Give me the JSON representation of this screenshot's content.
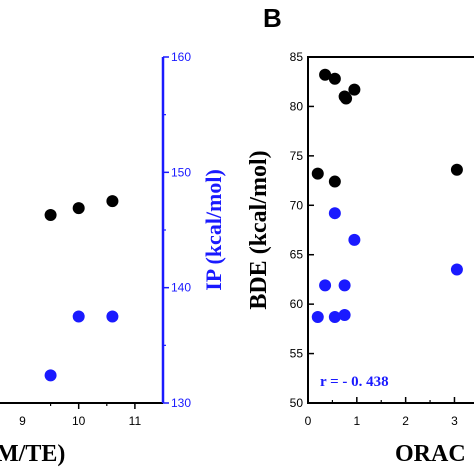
{
  "colors": {
    "black": "#000000",
    "blue": "#1a1aff"
  },
  "chart_data": [
    {
      "panel": "A",
      "type": "scatter",
      "xlabel": "M/TE)",
      "y2label": "IP (kcal/mol)",
      "xlim": [
        8.6,
        11.5
      ],
      "y2lim": [
        130,
        160
      ],
      "x_ticks": [
        10,
        11
      ],
      "y2_ticks": [
        130,
        140,
        150,
        160
      ],
      "series": [
        {
          "color": "black",
          "points": [
            [
              9.5,
              146.3
            ],
            [
              10.0,
              146.9
            ],
            [
              10.6,
              147.5
            ]
          ]
        },
        {
          "color": "blue",
          "points": [
            [
              9.5,
              132.4
            ],
            [
              10.0,
              137.5
            ],
            [
              10.6,
              137.5
            ]
          ]
        }
      ]
    },
    {
      "panel": "B",
      "type": "scatter",
      "title": "B",
      "xlabel": "ORAC",
      "ylabel": "BDE (kcal/mol)",
      "annotation": "r = - 0. 438",
      "xlim": [
        0,
        3.4
      ],
      "ylim": [
        50,
        85
      ],
      "x_ticks": [
        0,
        1,
        2,
        3
      ],
      "y_ticks": [
        50,
        55,
        60,
        65,
        70,
        75,
        80,
        85
      ],
      "series": [
        {
          "color": "black",
          "points": [
            [
              0.35,
              83.2
            ],
            [
              0.55,
              82.8
            ],
            [
              0.75,
              81.0
            ],
            [
              0.78,
              80.8
            ],
            [
              0.95,
              81.7
            ],
            [
              0.2,
              73.2
            ],
            [
              0.55,
              72.4
            ],
            [
              3.05,
              73.6
            ]
          ]
        },
        {
          "color": "blue",
          "points": [
            [
              0.55,
              69.2
            ],
            [
              0.95,
              66.5
            ],
            [
              0.35,
              61.9
            ],
            [
              0.75,
              61.9
            ],
            [
              0.2,
              58.7
            ],
            [
              0.55,
              58.7
            ],
            [
              0.75,
              58.9
            ],
            [
              3.05,
              63.5
            ]
          ]
        }
      ]
    }
  ]
}
